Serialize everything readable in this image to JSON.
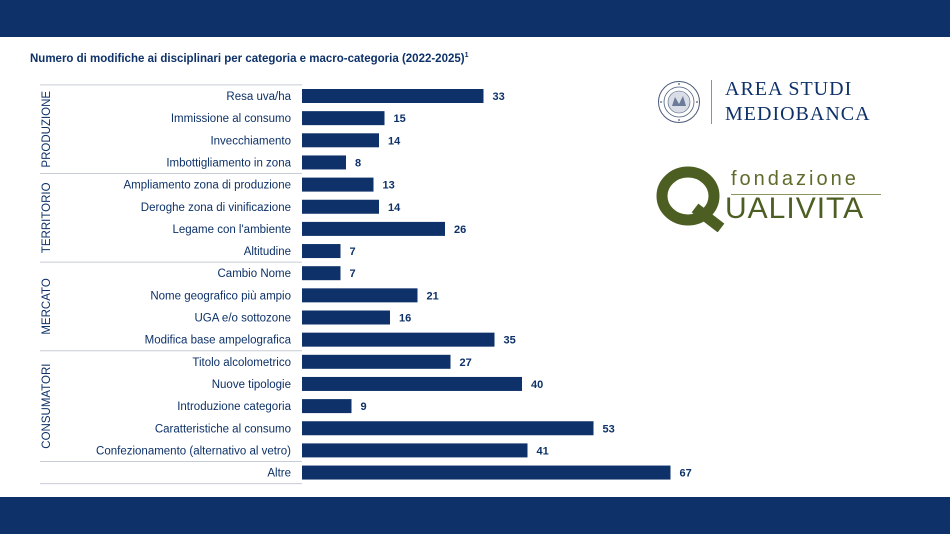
{
  "header": {
    "title": "Numero di modifiche ai disciplinari per categoria e macro-categoria (2022-2025)",
    "title_sup": "1"
  },
  "logos": {
    "mediobanca_line1": "AREA STUDI",
    "mediobanca_line2": "MEDIOBANCA",
    "qualivita_top": "fondazione",
    "qualivita_q": "Q",
    "qualivita_rest": "UALIVITA"
  },
  "colors": {
    "bar": "#0d3168",
    "band": "#0d3168",
    "divider": "#c8ccd6",
    "qualivita_green": "#4d5e22"
  },
  "chart_data": {
    "type": "bar",
    "orientation": "horizontal",
    "title": "Numero di modifiche ai disciplinari per categoria e macro-categoria (2022-2025)",
    "groups": [
      {
        "name": "PRODUZIONE",
        "categories": [
          "Resa uva/ha",
          "Immissione al consumo",
          "Invecchiamento",
          "Imbottigliamento in zona"
        ],
        "values": [
          33,
          15,
          14,
          8
        ]
      },
      {
        "name": "TERRITORIO",
        "categories": [
          "Ampliamento zona di produzione",
          "Deroghe zona di vinificazione",
          "Legame con l'ambiente",
          "Altitudine"
        ],
        "values": [
          13,
          14,
          26,
          7
        ]
      },
      {
        "name": "MERCATO",
        "categories": [
          "Cambio Nome",
          "Nome geografico più ampio",
          "UGA e/o sottozone",
          "Modifica base ampelografica"
        ],
        "values": [
          7,
          21,
          16,
          35
        ]
      },
      {
        "name": "CONSUMATORI",
        "categories": [
          "Titolo alcolometrico",
          "Nuove tipologie",
          "Introduzione categoria",
          "Caratteristiche al consumo",
          "Confezionamento (alternativo al vetro)"
        ],
        "values": [
          27,
          40,
          9,
          53,
          41
        ]
      },
      {
        "name": "",
        "categories": [
          "Altre"
        ],
        "values": [
          67
        ]
      }
    ],
    "xlim": [
      0,
      67
    ],
    "grid": false,
    "legend": "none",
    "data_labels": true
  }
}
